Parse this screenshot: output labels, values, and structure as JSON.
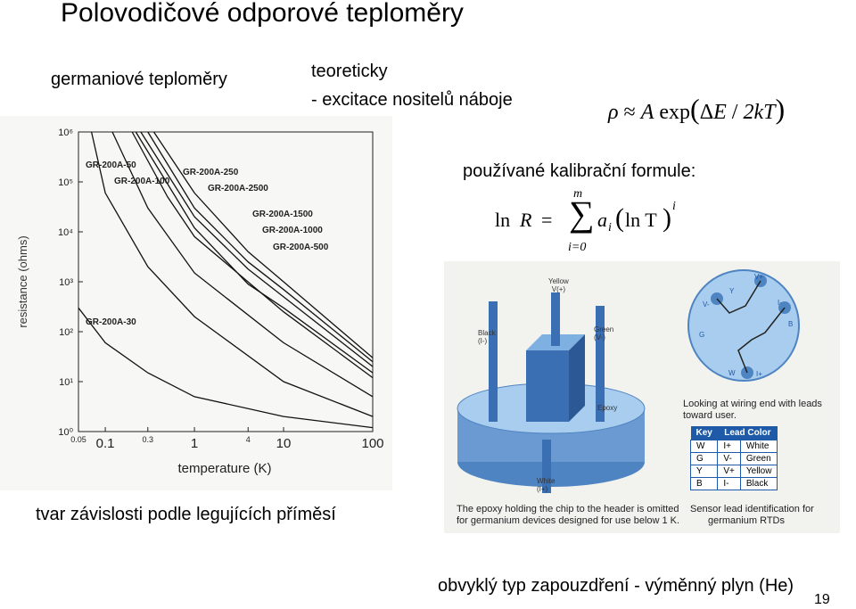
{
  "slide": {
    "title": "Polovodičové odporové teploměry",
    "label_germanium": "germaniové teploměry",
    "label_theory_1": "teoreticky",
    "label_theory_2": "- excitace nositelů náboje",
    "formula_rho": {
      "rho": "ρ",
      "approx": "≈",
      "A": "A",
      "exp": "exp",
      "lp": "(",
      "delta": "Δ",
      "E": "E",
      "slash": "/",
      "two_k": "2k",
      "T": "T",
      "rp": ")"
    },
    "label_calibration": "používané kalibrační formule:",
    "formula_lnR": {
      "ln": "ln",
      "R": "R",
      "eq": "=",
      "sum": "∑",
      "top": "m",
      "bottom": "i=0",
      "a": "a",
      "sub_i": "i",
      "lp": "(",
      "lnT": "ln T",
      "rp": ")",
      "sup_i": "i"
    },
    "caption_left": "tvar závislosti podle legujících příměsí",
    "caption_bottom": "obvyklý typ zapouzdření - výměnný plyn (He)",
    "page_number": "19"
  },
  "chart_data": {
    "type": "line",
    "xlabel": "temperature (K)",
    "ylabel": "resistance (ohms)",
    "xscale": "log",
    "yscale": "log",
    "xlim": [
      0.05,
      100
    ],
    "ylim": [
      1,
      1000000
    ],
    "x_ticks": [
      "0.05",
      "0.1",
      "0.3",
      "1",
      "4",
      "10",
      "100"
    ],
    "y_ticks": [
      "10⁰",
      "10¹",
      "10²",
      "10³",
      "10⁴",
      "10⁵",
      "10⁶"
    ],
    "series": [
      {
        "name": "GR-200A-50",
        "points": [
          [
            0.07,
            1000000
          ],
          [
            0.1,
            60000
          ],
          [
            0.3,
            2000
          ],
          [
            1,
            200
          ],
          [
            10,
            10
          ],
          [
            100,
            2
          ]
        ]
      },
      {
        "name": "GR-200A-100",
        "points": [
          [
            0.12,
            1000000
          ],
          [
            0.3,
            30000
          ],
          [
            1,
            1500
          ],
          [
            10,
            60
          ],
          [
            100,
            5
          ]
        ]
      },
      {
        "name": "GR-200A-250",
        "points": [
          [
            0.2,
            1000000
          ],
          [
            0.5,
            50000
          ],
          [
            1,
            8000
          ],
          [
            10,
            250
          ],
          [
            100,
            12
          ]
        ]
      },
      {
        "name": "GR-200A-2500",
        "points": [
          [
            0.35,
            1000000
          ],
          [
            1,
            60000
          ],
          [
            4,
            4000
          ],
          [
            10,
            1000
          ],
          [
            100,
            30
          ]
        ]
      },
      {
        "name": "GR-200A-1500",
        "points": [
          [
            0.3,
            1000000
          ],
          [
            1,
            30000
          ],
          [
            4,
            2500
          ],
          [
            10,
            700
          ],
          [
            100,
            25
          ]
        ]
      },
      {
        "name": "GR-200A-1000",
        "points": [
          [
            0.25,
            1000000
          ],
          [
            1,
            20000
          ],
          [
            4,
            1800
          ],
          [
            10,
            500
          ],
          [
            100,
            20
          ]
        ]
      },
      {
        "name": "GR-200A-500",
        "points": [
          [
            0.22,
            1000000
          ],
          [
            1,
            12000
          ],
          [
            4,
            900
          ],
          [
            10,
            300
          ],
          [
            100,
            15
          ]
        ]
      },
      {
        "name": "GR-200A-30",
        "points": [
          [
            0.05,
            300
          ],
          [
            0.1,
            60
          ],
          [
            0.3,
            15
          ],
          [
            1,
            5
          ],
          [
            10,
            2
          ],
          [
            100,
            1.2
          ]
        ]
      }
    ]
  },
  "package_figure": {
    "leads": {
      "yellow": "Yellow\nV(+)",
      "black": "Black\n(I-)",
      "green": "Green\n(V-)",
      "white": "White\n(I+)"
    },
    "epoxy_label": "Epoxy",
    "pins": {
      "v_plus": "V+",
      "i_minus": "I-",
      "v_minus": "V-",
      "i_plus": "I+",
      "Y": "Y",
      "B": "B",
      "G": "G",
      "W": "W"
    },
    "looking_text_1": "Looking at wiring end with leads",
    "looking_text_2": "toward user.",
    "table_header": [
      "Key",
      "Lead Color"
    ],
    "table_rows": [
      [
        "W",
        "I+",
        "White"
      ],
      [
        "G",
        "V-",
        "Green"
      ],
      [
        "Y",
        "V+",
        "Yellow"
      ],
      [
        "B",
        "I-",
        "Black"
      ]
    ],
    "note_left_1": "The epoxy holding the chip to the header is omitted",
    "note_left_2": "for germanium devices designed for use below 1 K.",
    "note_right_1": "Sensor lead identification for",
    "note_right_2": "germanium RTDs"
  },
  "colors": {
    "curve": "#111111",
    "package_blue": "#5b8ec9",
    "package_light": "#9ec3e8",
    "header_blue": "#1e5aa8",
    "pin_label": "#1e5aa8"
  }
}
